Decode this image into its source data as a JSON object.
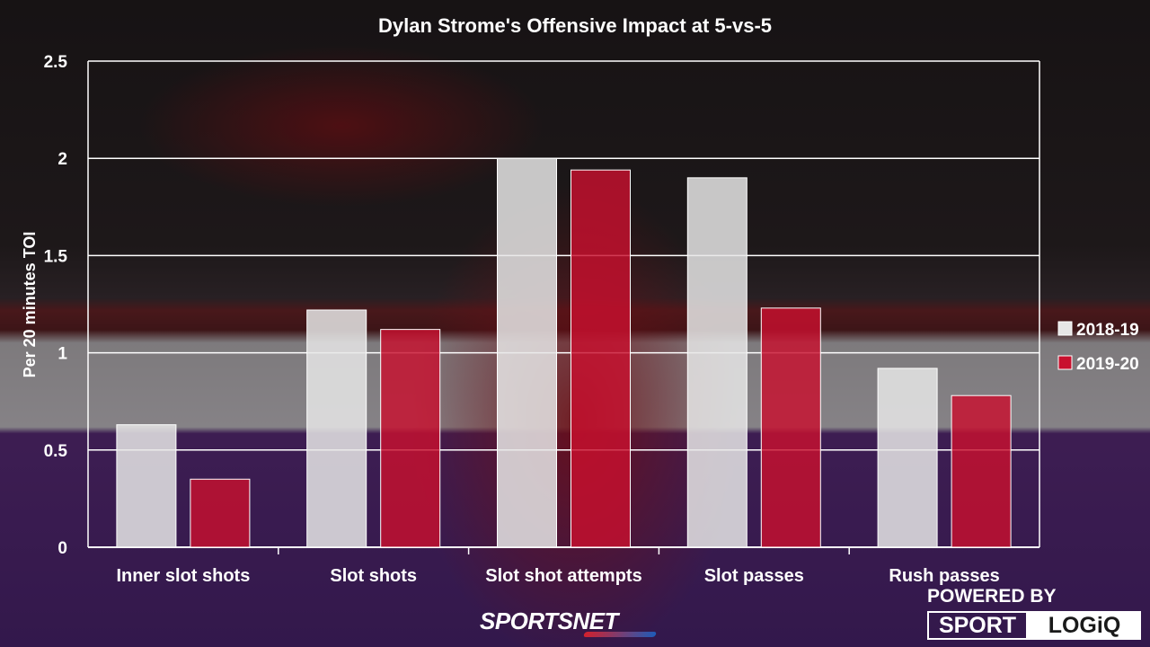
{
  "chart_data": {
    "type": "bar",
    "title": "Dylan Strome's Offensive Impact at 5-vs-5",
    "xlabel": "",
    "ylabel": "Per 20 minutes TOI",
    "ylim": [
      0,
      2.5
    ],
    "yticks": [
      "0",
      "0.5",
      "1",
      "1.5",
      "2",
      "2.5"
    ],
    "ytick_values": [
      0,
      0.5,
      1,
      1.5,
      2,
      2.5
    ],
    "categories": [
      "Inner slot shots",
      "Slot shots",
      "Slot shot attempts",
      "Slot passes",
      "Rush passes"
    ],
    "series": [
      {
        "name": "2018-19",
        "color": "#e6e6e6",
        "values": [
          0.63,
          1.22,
          2.0,
          1.9,
          0.92
        ]
      },
      {
        "name": "2019-20",
        "color": "#c8102e",
        "values": [
          0.35,
          1.12,
          1.94,
          1.23,
          0.78
        ]
      }
    ],
    "grid": true,
    "legend_position": "right"
  },
  "branding": {
    "sportsnet": "SPORTSNET",
    "powered_by": "POWERED BY",
    "sport": "SPORT",
    "logiq": "LOGiQ"
  }
}
